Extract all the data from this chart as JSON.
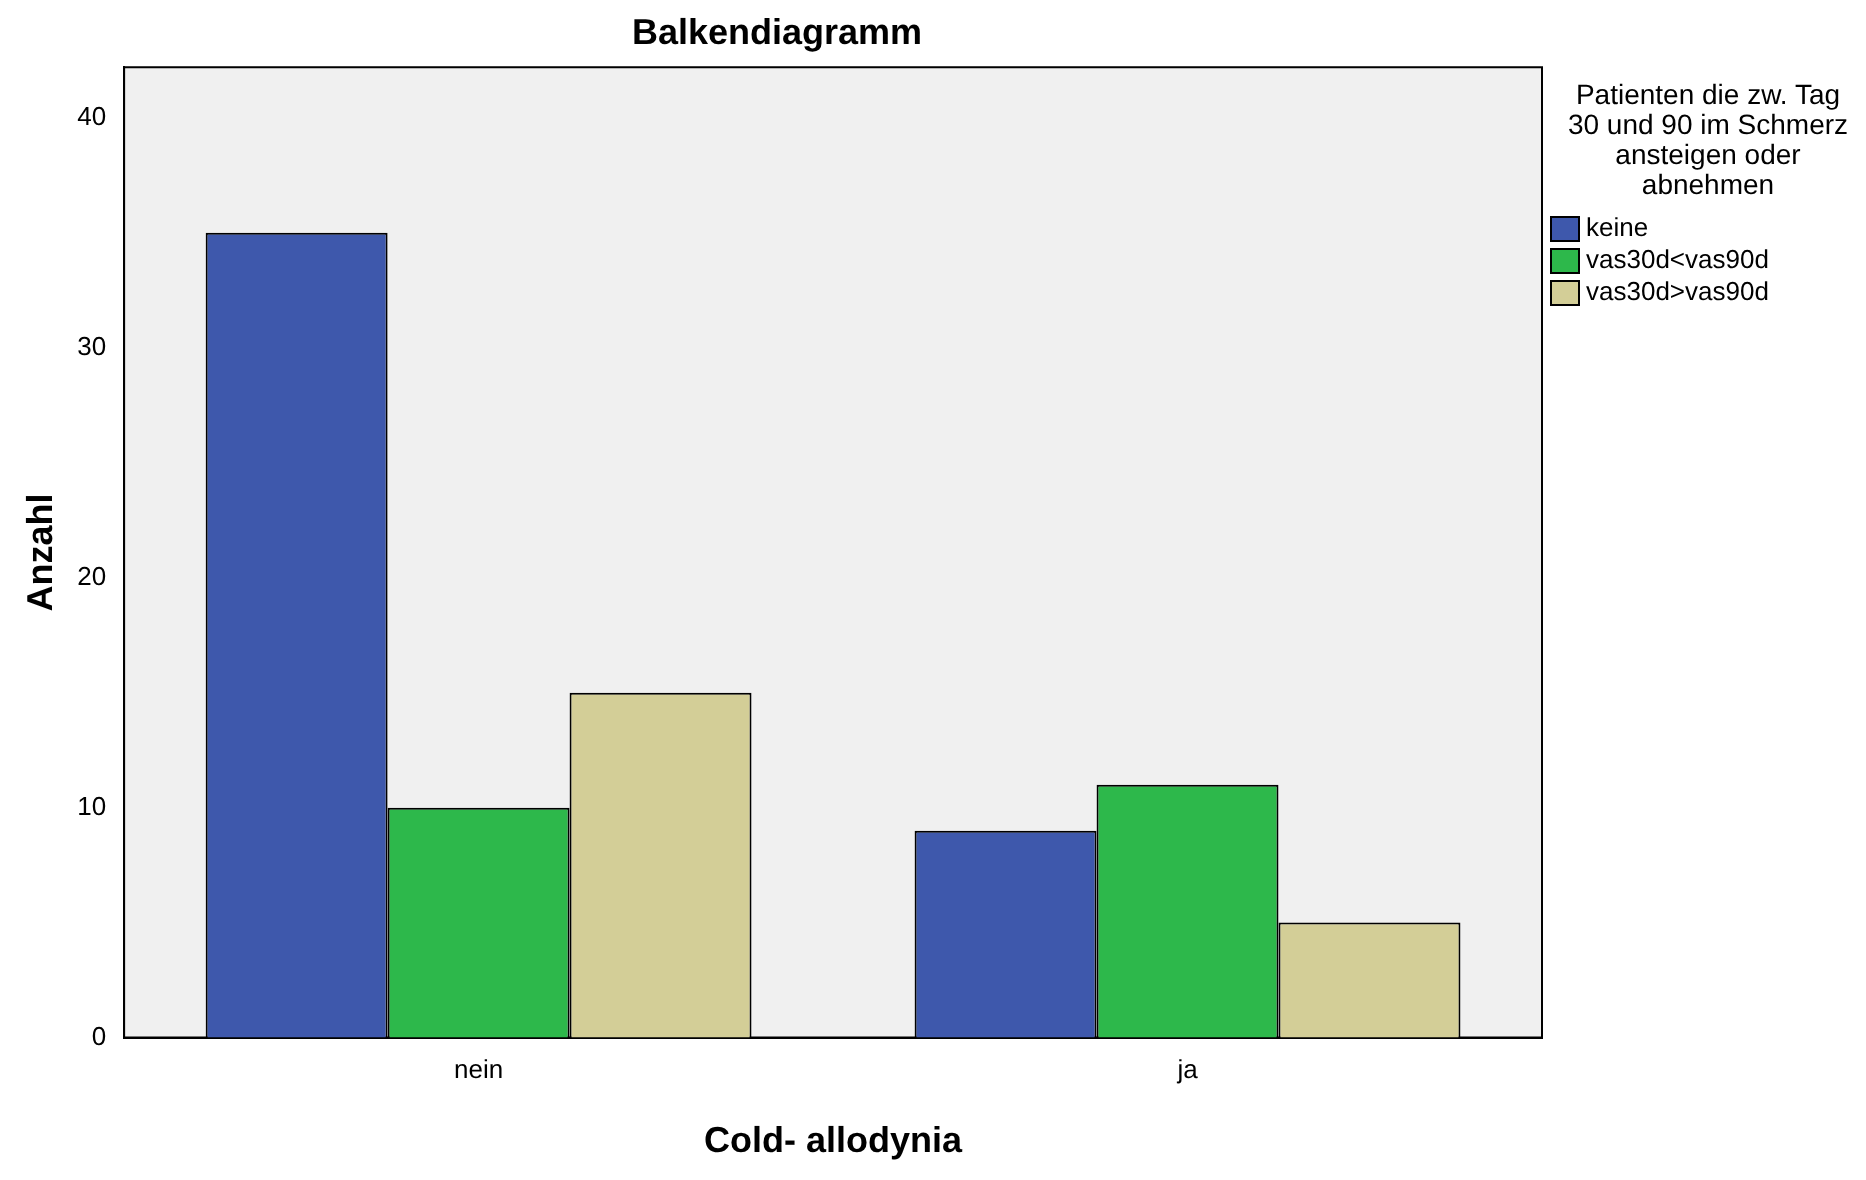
{
  "chart_data": {
    "type": "bar",
    "title": "Balkendiagramm",
    "xlabel": "Cold- allodynia",
    "ylabel": "Anzahl",
    "legend_title": "Patienten die zw. Tag 30 und 90 im Schmerz ansteigen oder abnehmen",
    "categories": [
      "nein",
      "ja"
    ],
    "series": [
      {
        "name": "keine",
        "color": "#3e58ac",
        "values": [
          35,
          9
        ]
      },
      {
        "name": "vas30d<vas90d",
        "color": "#2db84b",
        "values": [
          10,
          11
        ]
      },
      {
        "name": "vas30d>vas90d",
        "color": "#d3ce97",
        "values": [
          15,
          5
        ]
      }
    ],
    "ylim": [
      0,
      42.2
    ],
    "yticks": [
      0,
      10,
      20,
      30,
      40
    ],
    "grid": false,
    "legend": "right"
  }
}
